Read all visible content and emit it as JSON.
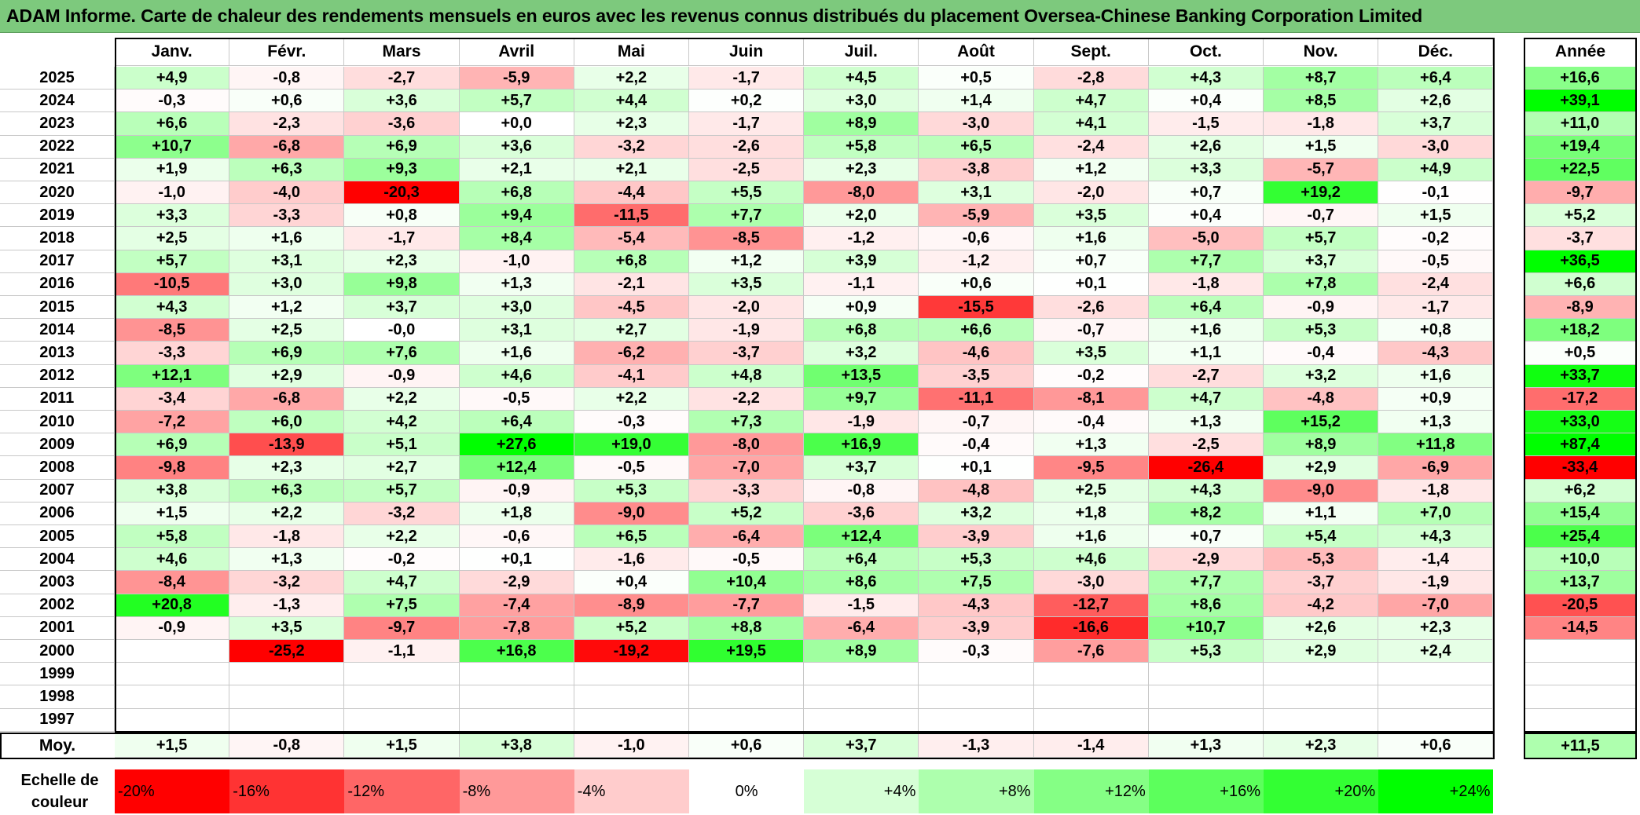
{
  "title": "ADAM Informe. Carte de chaleur des rendements mensuels en euros avec les revenus connus distribués du placement Oversea-Chinese Banking Corporation Limited",
  "chart_data": {
    "type": "heatmap",
    "title": "ADAM Informe. Carte de chaleur des rendements mensuels en euros avec les revenus connus distribués du placement Oversea-Chinese Banking Corporation Limited",
    "months": [
      "Janv.",
      "Févr.",
      "Mars",
      "Avril",
      "Mai",
      "Juin",
      "Juil.",
      "Août",
      "Sept.",
      "Oct.",
      "Nov.",
      "Déc."
    ],
    "year_header": "Année",
    "avg_label": "Moy.",
    "rows": [
      {
        "year": "2025",
        "values": [
          "+4,9",
          "-0,8",
          "-2,7",
          "-5,9",
          "+2,2",
          "-1,7",
          "+4,5",
          "+0,5",
          "-2,8",
          "+4,3",
          "+8,7",
          "+6,4"
        ],
        "annual": "+16,6"
      },
      {
        "year": "2024",
        "values": [
          "-0,3",
          "+0,6",
          "+3,6",
          "+5,7",
          "+4,4",
          "+0,2",
          "+3,0",
          "+1,4",
          "+4,7",
          "+0,4",
          "+8,5",
          "+2,6"
        ],
        "annual": "+39,1"
      },
      {
        "year": "2023",
        "values": [
          "+6,6",
          "-2,3",
          "-3,6",
          "+0,0",
          "+2,3",
          "-1,7",
          "+8,9",
          "-3,0",
          "+4,1",
          "-1,5",
          "-1,8",
          "+3,7"
        ],
        "annual": "+11,0"
      },
      {
        "year": "2022",
        "values": [
          "+10,7",
          "-6,8",
          "+6,9",
          "+3,6",
          "-3,2",
          "-2,6",
          "+5,8",
          "+6,5",
          "-2,4",
          "+2,6",
          "+1,5",
          "-3,0"
        ],
        "annual": "+19,4"
      },
      {
        "year": "2021",
        "values": [
          "+1,9",
          "+6,3",
          "+9,3",
          "+2,1",
          "+2,1",
          "-2,5",
          "+2,3",
          "-3,8",
          "+1,2",
          "+3,3",
          "-5,7",
          "+4,9"
        ],
        "annual": "+22,5"
      },
      {
        "year": "2020",
        "values": [
          "-1,0",
          "-4,0",
          "-20,3",
          "+6,8",
          "-4,4",
          "+5,5",
          "-8,0",
          "+3,1",
          "-2,0",
          "+0,7",
          "+19,2",
          "-0,1"
        ],
        "annual": "-9,7"
      },
      {
        "year": "2019",
        "values": [
          "+3,3",
          "-3,3",
          "+0,8",
          "+9,4",
          "-11,5",
          "+7,7",
          "+2,0",
          "-5,9",
          "+3,5",
          "+0,4",
          "-0,7",
          "+1,5"
        ],
        "annual": "+5,2"
      },
      {
        "year": "2018",
        "values": [
          "+2,5",
          "+1,6",
          "-1,7",
          "+8,4",
          "-5,4",
          "-8,5",
          "-1,2",
          "-0,6",
          "+1,6",
          "-5,0",
          "+5,7",
          "-0,2"
        ],
        "annual": "-3,7"
      },
      {
        "year": "2017",
        "values": [
          "+5,7",
          "+3,1",
          "+2,3",
          "-1,0",
          "+6,8",
          "+1,2",
          "+3,9",
          "-1,2",
          "+0,7",
          "+7,7",
          "+3,7",
          "-0,5"
        ],
        "annual": "+36,5"
      },
      {
        "year": "2016",
        "values": [
          "-10,5",
          "+3,0",
          "+9,8",
          "+1,3",
          "-2,1",
          "+3,5",
          "-1,1",
          "+0,6",
          "+0,1",
          "-1,8",
          "+7,8",
          "-2,4"
        ],
        "annual": "+6,6"
      },
      {
        "year": "2015",
        "values": [
          "+4,3",
          "+1,2",
          "+3,7",
          "+3,0",
          "-4,5",
          "-2,0",
          "+0,9",
          "-15,5",
          "-2,6",
          "+6,4",
          "-0,9",
          "-1,7"
        ],
        "annual": "-8,9"
      },
      {
        "year": "2014",
        "values": [
          "-8,5",
          "+2,5",
          "-0,0",
          "+3,1",
          "+2,7",
          "-1,9",
          "+6,8",
          "+6,6",
          "-0,7",
          "+1,6",
          "+5,3",
          "+0,8"
        ],
        "annual": "+18,2"
      },
      {
        "year": "2013",
        "values": [
          "-3,3",
          "+6,9",
          "+7,6",
          "+1,6",
          "-6,2",
          "-3,7",
          "+3,2",
          "-4,6",
          "+3,5",
          "+1,1",
          "-0,4",
          "-4,3"
        ],
        "annual": "+0,5"
      },
      {
        "year": "2012",
        "values": [
          "+12,1",
          "+2,9",
          "-0,9",
          "+4,6",
          "-4,1",
          "+4,8",
          "+13,5",
          "-3,5",
          "-0,2",
          "-2,7",
          "+3,2",
          "+1,6"
        ],
        "annual": "+33,7"
      },
      {
        "year": "2011",
        "values": [
          "-3,4",
          "-6,8",
          "+2,2",
          "-0,5",
          "+2,2",
          "-2,2",
          "+9,7",
          "-11,1",
          "-8,1",
          "+4,7",
          "-4,8",
          "+0,9"
        ],
        "annual": "-17,2"
      },
      {
        "year": "2010",
        "values": [
          "-7,2",
          "+6,0",
          "+4,2",
          "+6,4",
          "-0,3",
          "+7,3",
          "-1,9",
          "-0,7",
          "-0,4",
          "+1,3",
          "+15,2",
          "+1,3"
        ],
        "annual": "+33,0"
      },
      {
        "year": "2009",
        "values": [
          "+6,9",
          "-13,9",
          "+5,1",
          "+27,6",
          "+19,0",
          "-8,0",
          "+16,9",
          "-0,4",
          "+1,3",
          "-2,5",
          "+8,9",
          "+11,8"
        ],
        "annual": "+87,4"
      },
      {
        "year": "2008",
        "values": [
          "-9,8",
          "+2,3",
          "+2,7",
          "+12,4",
          "-0,5",
          "-7,0",
          "+3,7",
          "+0,1",
          "-9,5",
          "-26,4",
          "+2,9",
          "-6,9"
        ],
        "annual": "-33,4"
      },
      {
        "year": "2007",
        "values": [
          "+3,8",
          "+6,3",
          "+5,7",
          "-0,9",
          "+5,3",
          "-3,3",
          "-0,8",
          "-4,8",
          "+2,5",
          "+4,3",
          "-9,0",
          "-1,8"
        ],
        "annual": "+6,2"
      },
      {
        "year": "2006",
        "values": [
          "+1,5",
          "+2,2",
          "-3,2",
          "+1,8",
          "-9,0",
          "+5,2",
          "-3,6",
          "+3,2",
          "+1,8",
          "+8,2",
          "+1,1",
          "+7,0"
        ],
        "annual": "+15,4"
      },
      {
        "year": "2005",
        "values": [
          "+5,8",
          "-1,8",
          "+2,2",
          "-0,6",
          "+6,5",
          "-6,4",
          "+12,4",
          "-3,9",
          "+1,6",
          "+0,7",
          "+5,4",
          "+4,3"
        ],
        "annual": "+25,4"
      },
      {
        "year": "2004",
        "values": [
          "+4,6",
          "+1,3",
          "-0,2",
          "+0,1",
          "-1,6",
          "-0,5",
          "+6,4",
          "+5,3",
          "+4,6",
          "-2,9",
          "-5,3",
          "-1,4"
        ],
        "annual": "+10,0"
      },
      {
        "year": "2003",
        "values": [
          "-8,4",
          "-3,2",
          "+4,7",
          "-2,9",
          "+0,4",
          "+10,4",
          "+8,6",
          "+7,5",
          "-3,0",
          "+7,7",
          "-3,7",
          "-1,9"
        ],
        "annual": "+13,7"
      },
      {
        "year": "2002",
        "values": [
          "+20,8",
          "-1,3",
          "+7,5",
          "-7,4",
          "-8,9",
          "-7,7",
          "-1,5",
          "-4,3",
          "-12,7",
          "+8,6",
          "-4,2",
          "-7,0"
        ],
        "annual": "-20,5"
      },
      {
        "year": "2001",
        "values": [
          "-0,9",
          "+3,5",
          "-9,7",
          "-7,8",
          "+5,2",
          "+8,8",
          "-6,4",
          "-3,9",
          "-16,6",
          "+10,7",
          "+2,6",
          "+2,3"
        ],
        "annual": "-14,5"
      },
      {
        "year": "2000",
        "values": [
          "",
          "-25,2",
          "-1,1",
          "+16,8",
          "-19,2",
          "+19,5",
          "+8,9",
          "-0,3",
          "-7,6",
          "+5,3",
          "+2,9",
          "+2,4"
        ],
        "annual": ""
      },
      {
        "year": "1999",
        "values": [
          "",
          "",
          "",
          "",
          "",
          "",
          "",
          "",
          "",
          "",
          "",
          ""
        ],
        "annual": ""
      },
      {
        "year": "1998",
        "values": [
          "",
          "",
          "",
          "",
          "",
          "",
          "",
          "",
          "",
          "",
          "",
          ""
        ],
        "annual": ""
      },
      {
        "year": "1997",
        "values": [
          "",
          "",
          "",
          "",
          "",
          "",
          "",
          "",
          "",
          "",
          "",
          ""
        ],
        "annual": ""
      }
    ],
    "averages": [
      "+1,5",
      "-0,8",
      "+1,5",
      "+3,8",
      "-1,0",
      "+0,6",
      "+3,7",
      "-1,3",
      "-1,4",
      "+1,3",
      "+2,3",
      "+0,6"
    ],
    "annual_average": "+11,5",
    "scale_label": "Echelle de couleur",
    "scale": [
      {
        "label": "-20%",
        "value": -20,
        "color": "#ff0000",
        "align": "left"
      },
      {
        "label": "-16%",
        "value": -16,
        "color": "#ff3333",
        "align": "left"
      },
      {
        "label": "-12%",
        "value": -12,
        "color": "#ff6666",
        "align": "left"
      },
      {
        "label": "-8%",
        "value": -8,
        "color": "#ff9999",
        "align": "left"
      },
      {
        "label": "-4%",
        "value": -4,
        "color": "#ffcccc",
        "align": "left"
      },
      {
        "label": "0%",
        "value": 0,
        "color": "#ffffff",
        "align": "center"
      },
      {
        "label": "+4%",
        "value": 4,
        "color": "#d6ffd6",
        "align": "right"
      },
      {
        "label": "+8%",
        "value": 8,
        "color": "#adffad",
        "align": "right"
      },
      {
        "label": "+12%",
        "value": 12,
        "color": "#85ff85",
        "align": "right"
      },
      {
        "label": "+16%",
        "value": 16,
        "color": "#5cff5c",
        "align": "right"
      },
      {
        "label": "+20%",
        "value": 20,
        "color": "#33ff33",
        "align": "right"
      },
      {
        "label": "+24%",
        "value": 24,
        "color": "#00ff00",
        "align": "right"
      }
    ]
  }
}
